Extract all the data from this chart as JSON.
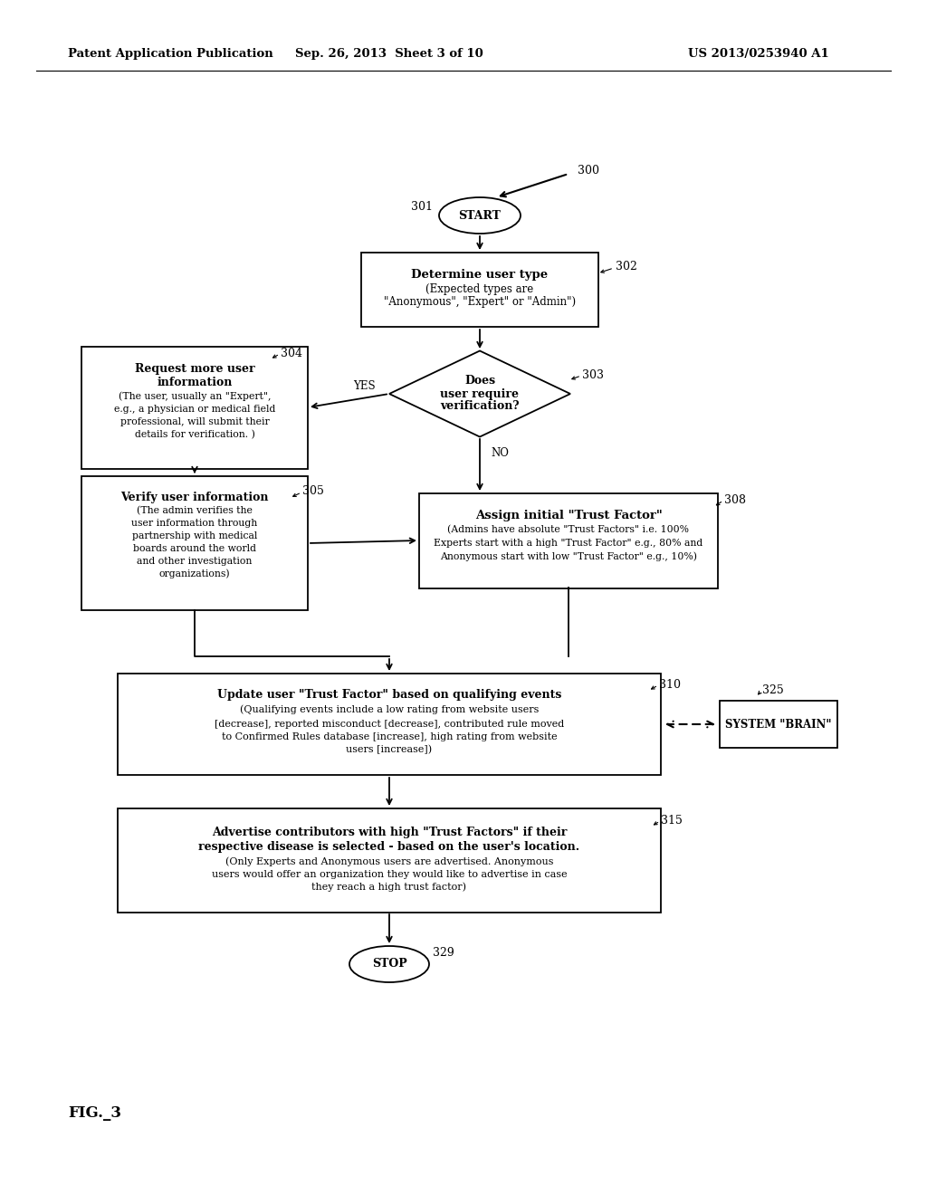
{
  "header_left": "Patent Application Publication",
  "header_mid": "Sep. 26, 2013  Sheet 3 of 10",
  "header_right": "US 2013/0253940 A1",
  "fig_label": "FIG._3",
  "bg_color": "#ffffff"
}
